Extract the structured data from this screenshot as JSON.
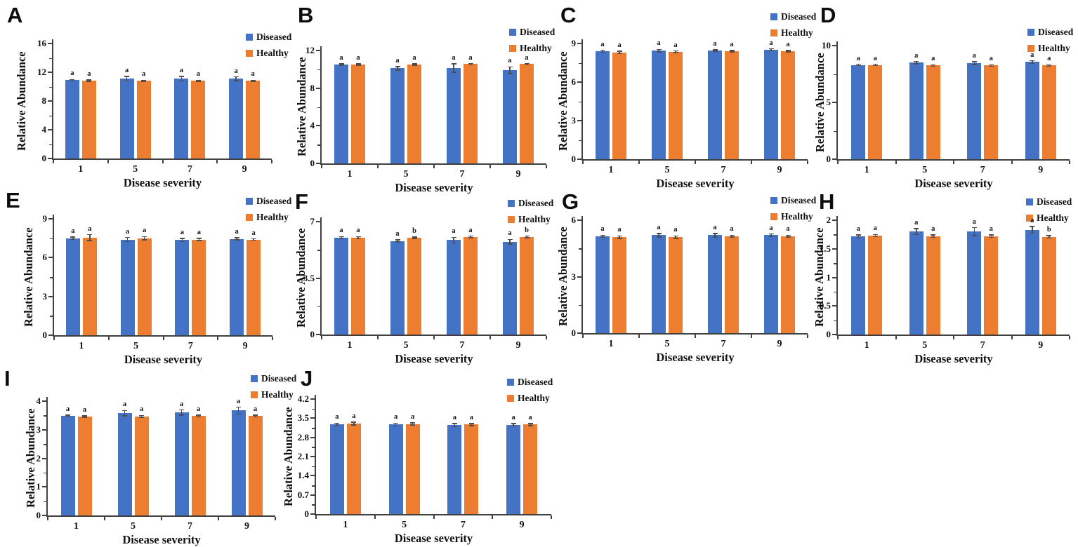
{
  "figure": {
    "x_label": "Disease severity",
    "y_label": "Relative Abundance",
    "categories": [
      "1",
      "5",
      "7",
      "9"
    ],
    "legend": [
      {
        "label": "Diseased",
        "color": "#4472C4"
      },
      {
        "label": "Healthy",
        "color": "#ED7D31"
      }
    ],
    "colors": {
      "diseased": "#4472C4",
      "healthy": "#ED7D31",
      "axis": "#404040",
      "error_bar": "#4d4d4d",
      "text": "#111111",
      "background": "#ffffff"
    }
  },
  "chart_data": [
    {
      "panel": "A",
      "type": "bar",
      "categories": [
        "1",
        "5",
        "7",
        "9"
      ],
      "xlabel": "Disease severity",
      "ylabel": "Relative Abundance",
      "ylim": [
        0,
        16
      ],
      "yticks": [
        "0",
        "4",
        "8",
        "12",
        "16"
      ],
      "grid": false,
      "legend_position": "top-right",
      "series": [
        {
          "name": "Diseased",
          "color": "#4472C4",
          "values": [
            10.9,
            11.1,
            11.1,
            11.1
          ],
          "errors": [
            0.1,
            0.3,
            0.3,
            0.25
          ],
          "sig_letters": [
            "a",
            "a",
            "a",
            "a"
          ]
        },
        {
          "name": "Healthy",
          "color": "#ED7D31",
          "values": [
            10.85,
            10.8,
            10.8,
            10.8
          ],
          "errors": [
            0.1,
            0.08,
            0.08,
            0.08
          ],
          "sig_letters": [
            "a",
            "a",
            "a",
            "a"
          ]
        }
      ]
    },
    {
      "panel": "B",
      "type": "bar",
      "categories": [
        "1",
        "5",
        "7",
        "9"
      ],
      "xlabel": "Disease severity",
      "ylabel": "Relative Abundance",
      "ylim": [
        0,
        12
      ],
      "yticks": [
        "0",
        "4",
        "8",
        "12"
      ],
      "grid": false,
      "legend_position": "top-right",
      "series": [
        {
          "name": "Diseased",
          "color": "#4472C4",
          "values": [
            10.5,
            10.1,
            10.15,
            9.9
          ],
          "errors": [
            0.08,
            0.2,
            0.45,
            0.35
          ],
          "sig_letters": [
            "a",
            "a",
            "a",
            "a"
          ]
        },
        {
          "name": "Healthy",
          "color": "#ED7D31",
          "values": [
            10.5,
            10.5,
            10.55,
            10.55
          ],
          "errors": [
            0.08,
            0.08,
            0.06,
            0.06
          ],
          "sig_letters": [
            "a",
            "a",
            "a",
            "a"
          ]
        }
      ]
    },
    {
      "panel": "C",
      "type": "bar",
      "categories": [
        "1",
        "5",
        "7",
        "9"
      ],
      "xlabel": "Disease severity",
      "ylabel": "Relative Abundance",
      "ylim": [
        0,
        9
      ],
      "yticks": [
        "0",
        "3",
        "6",
        "9"
      ],
      "grid": false,
      "legend_position": "top-right",
      "series": [
        {
          "name": "Diseased",
          "color": "#4472C4",
          "values": [
            8.4,
            8.45,
            8.45,
            8.5
          ],
          "errors": [
            0.07,
            0.1,
            0.06,
            0.08
          ],
          "sig_letters": [
            "a",
            "a",
            "a",
            "a"
          ]
        },
        {
          "name": "Healthy",
          "color": "#ED7D31",
          "values": [
            8.3,
            8.35,
            8.4,
            8.4
          ],
          "errors": [
            0.1,
            0.07,
            0.06,
            0.06
          ],
          "sig_letters": [
            "a",
            "a",
            "a",
            "a"
          ]
        }
      ]
    },
    {
      "panel": "D",
      "type": "bar",
      "categories": [
        "1",
        "5",
        "7",
        "9"
      ],
      "xlabel": "Disease severity",
      "ylabel": "Relative Abundance",
      "ylim": [
        0,
        10
      ],
      "yticks": [
        "0",
        "5",
        "10"
      ],
      "grid": false,
      "legend_position": "top-right",
      "series": [
        {
          "name": "Diseased",
          "color": "#4472C4",
          "values": [
            8.3,
            8.5,
            8.45,
            8.55
          ],
          "errors": [
            0.06,
            0.1,
            0.12,
            0.12
          ],
          "sig_letters": [
            "a",
            "a",
            "a",
            "a"
          ]
        },
        {
          "name": "Healthy",
          "color": "#ED7D31",
          "values": [
            8.3,
            8.25,
            8.25,
            8.25
          ],
          "errors": [
            0.06,
            0.06,
            0.06,
            0.06
          ],
          "sig_letters": [
            "a",
            "a",
            "a",
            "a"
          ]
        }
      ]
    },
    {
      "panel": "E",
      "type": "bar",
      "categories": [
        "1",
        "5",
        "7",
        "9"
      ],
      "xlabel": "Disease severity",
      "ylabel": "Relative Abundance",
      "ylim": [
        0,
        9
      ],
      "yticks": [
        "0",
        "3",
        "6",
        "9"
      ],
      "grid": false,
      "legend_position": "top-right",
      "series": [
        {
          "name": "Diseased",
          "color": "#4472C4",
          "values": [
            7.5,
            7.4,
            7.35,
            7.45
          ],
          "errors": [
            0.1,
            0.15,
            0.12,
            0.08
          ],
          "sig_letters": [
            "a",
            "a",
            "a",
            "a"
          ]
        },
        {
          "name": "Healthy",
          "color": "#ED7D31",
          "values": [
            7.55,
            7.5,
            7.4,
            7.4
          ],
          "errors": [
            0.22,
            0.12,
            0.07,
            0.05
          ],
          "sig_letters": [
            "a",
            "a",
            "a",
            "a"
          ]
        }
      ]
    },
    {
      "panel": "F",
      "type": "bar",
      "categories": [
        "1",
        "5",
        "7",
        "9"
      ],
      "xlabel": "Disease severity",
      "ylabel": "Relative Abundance",
      "ylim": [
        0,
        7
      ],
      "yticks": [
        "0",
        "3.5",
        "7"
      ],
      "grid": false,
      "legend_position": "top-right",
      "series": [
        {
          "name": "Diseased",
          "color": "#4472C4",
          "values": [
            6.0,
            5.8,
            5.85,
            5.75
          ],
          "errors": [
            0.07,
            0.07,
            0.18,
            0.15
          ],
          "sig_letters": [
            "a",
            "a",
            "a",
            "a"
          ]
        },
        {
          "name": "Healthy",
          "color": "#ED7D31",
          "values": [
            6.0,
            6.0,
            6.05,
            6.05
          ],
          "errors": [
            0.07,
            0.05,
            0.05,
            0.05
          ],
          "sig_letters": [
            "a",
            "b",
            "a",
            "b"
          ]
        }
      ]
    },
    {
      "panel": "G",
      "type": "bar",
      "categories": [
        "1",
        "5",
        "7",
        "9"
      ],
      "xlabel": "Disease severity",
      "ylabel": "Relative Abundance",
      "ylim": [
        0,
        6
      ],
      "yticks": [
        "0",
        "3",
        "6"
      ],
      "grid": false,
      "legend_position": "top-right",
      "series": [
        {
          "name": "Diseased",
          "color": "#4472C4",
          "values": [
            5.15,
            5.2,
            5.2,
            5.2
          ],
          "errors": [
            0.05,
            0.1,
            0.1,
            0.07
          ],
          "sig_letters": [
            "a",
            "a",
            "a",
            "a"
          ]
        },
        {
          "name": "Healthy",
          "color": "#ED7D31",
          "values": [
            5.1,
            5.1,
            5.15,
            5.15
          ],
          "errors": [
            0.07,
            0.07,
            0.05,
            0.05
          ],
          "sig_letters": [
            "a",
            "a",
            "a",
            "a"
          ]
        }
      ]
    },
    {
      "panel": "H",
      "type": "bar",
      "categories": [
        "1",
        "5",
        "7",
        "9"
      ],
      "xlabel": "Disease severity",
      "ylabel": "Relative Abundance",
      "ylim": [
        0,
        2
      ],
      "yticks": [
        "0",
        "0.5",
        "1",
        "1.5",
        "2"
      ],
      "grid": false,
      "legend_position": "top-right",
      "series": [
        {
          "name": "Diseased",
          "color": "#4472C4",
          "values": [
            1.72,
            1.8,
            1.8,
            1.83
          ],
          "errors": [
            0.02,
            0.05,
            0.07,
            0.06
          ],
          "sig_letters": [
            "a",
            "a",
            "a",
            "a"
          ]
        },
        {
          "name": "Healthy",
          "color": "#ED7D31",
          "values": [
            1.73,
            1.72,
            1.72,
            1.71
          ],
          "errors": [
            0.02,
            0.02,
            0.02,
            0.02
          ],
          "sig_letters": [
            "a",
            "a",
            "a",
            "b"
          ]
        }
      ]
    },
    {
      "panel": "I",
      "type": "bar",
      "categories": [
        "1",
        "5",
        "7",
        "9"
      ],
      "xlabel": "Disease severity",
      "ylabel": "Relative Abundance",
      "ylim": [
        0,
        4
      ],
      "yticks": [
        "0",
        "1",
        "2",
        "3",
        "4"
      ],
      "grid": false,
      "legend_position": "top-right",
      "series": [
        {
          "name": "Diseased",
          "color": "#4472C4",
          "values": [
            3.48,
            3.58,
            3.6,
            3.67
          ],
          "errors": [
            0.03,
            0.09,
            0.09,
            0.12
          ],
          "sig_letters": [
            "a",
            "a",
            "a",
            "a"
          ]
        },
        {
          "name": "Healthy",
          "color": "#ED7D31",
          "values": [
            3.46,
            3.47,
            3.48,
            3.48
          ],
          "errors": [
            0.03,
            0.03,
            0.03,
            0.03
          ],
          "sig_letters": [
            "a",
            "a",
            "a",
            "a"
          ]
        }
      ]
    },
    {
      "panel": "J",
      "type": "bar",
      "categories": [
        "1",
        "5",
        "7",
        "9"
      ],
      "xlabel": "Disease severity",
      "ylabel": "Relative Abundance",
      "ylim": [
        0,
        4.2
      ],
      "yticks": [
        "0",
        "0.7",
        "1.4",
        "2.1",
        "2.8",
        "3.5",
        "4.2"
      ],
      "grid": false,
      "legend_position": "top-right",
      "series": [
        {
          "name": "Diseased",
          "color": "#4472C4",
          "values": [
            3.28,
            3.27,
            3.25,
            3.26
          ],
          "errors": [
            0.04,
            0.05,
            0.06,
            0.05
          ],
          "sig_letters": [
            "a",
            "a",
            "a",
            "a"
          ]
        },
        {
          "name": "Healthy",
          "color": "#ED7D31",
          "values": [
            3.3,
            3.29,
            3.27,
            3.27
          ],
          "errors": [
            0.05,
            0.04,
            0.04,
            0.04
          ],
          "sig_letters": [
            "a",
            "a",
            "a",
            "a"
          ]
        }
      ]
    }
  ]
}
